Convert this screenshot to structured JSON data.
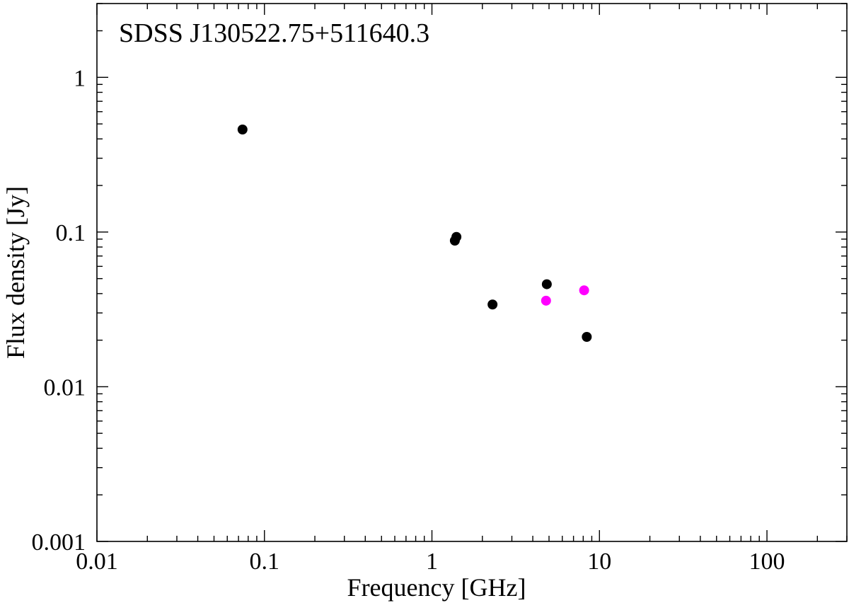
{
  "chart_data": {
    "type": "scatter",
    "title": "SDSS J130522.75+511640.3",
    "xlabel": "Frequency [GHz]",
    "ylabel": "Flux density [Jy]",
    "xscale": "log",
    "yscale": "log",
    "xlim": [
      0.01,
      300
    ],
    "ylim": [
      0.001,
      3
    ],
    "xticks": [
      {
        "value": 0.01,
        "label": "0.01"
      },
      {
        "value": 0.1,
        "label": "0.1"
      },
      {
        "value": 1,
        "label": "1"
      },
      {
        "value": 10,
        "label": "10"
      },
      {
        "value": 100,
        "label": "100"
      }
    ],
    "yticks": [
      {
        "value": 0.001,
        "label": "0.001"
      },
      {
        "value": 0.01,
        "label": "0.01"
      },
      {
        "value": 0.1,
        "label": "0.1"
      },
      {
        "value": 1,
        "label": "1"
      }
    ],
    "grid": false,
    "series": [
      {
        "color": "#000000",
        "points": [
          {
            "x": 0.074,
            "y": 0.46
          },
          {
            "x": 1.4,
            "y": 0.093
          },
          {
            "x": 1.37,
            "y": 0.088
          },
          {
            "x": 2.3,
            "y": 0.034
          },
          {
            "x": 4.85,
            "y": 0.046
          },
          {
            "x": 8.4,
            "y": 0.021
          }
        ]
      },
      {
        "color": "#ff00ff",
        "points": [
          {
            "x": 4.8,
            "y": 0.036
          },
          {
            "x": 8.1,
            "y": 0.042
          }
        ]
      }
    ]
  }
}
